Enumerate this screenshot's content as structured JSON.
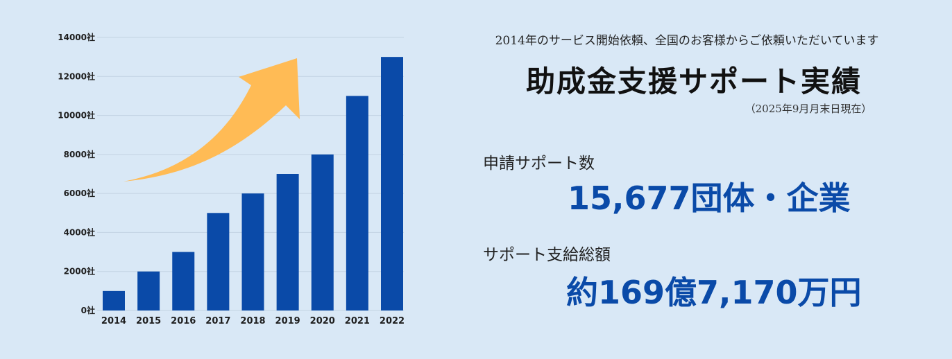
{
  "chart_data": {
    "type": "bar",
    "categories": [
      "2014",
      "2015",
      "2016",
      "2017",
      "2018",
      "2019",
      "2020",
      "2021",
      "2022"
    ],
    "values": [
      1000,
      2000,
      3000,
      5000,
      6000,
      7000,
      8000,
      11000,
      13000
    ],
    "ylim": [
      0,
      14000
    ],
    "y_ticks": [
      "0社",
      "2000社",
      "4000社",
      "6000社",
      "8000社",
      "10000社",
      "12000社",
      "14000社"
    ],
    "y_tick_values": [
      0,
      2000,
      4000,
      6000,
      8000,
      10000,
      12000,
      14000
    ],
    "grid": true,
    "bar_color": "#0a4aa8",
    "arrow_color": "#ffbb55"
  },
  "info": {
    "intro": "2014年のサービス開始依頼、全国のお客様からご依頼いただいています",
    "headline": "助成金支援サポート実績",
    "as_of": "（2025年9月月末日現在）",
    "stat1_label": "申請サポート数",
    "stat1_value": "15,677団体・企業",
    "stat2_label": "サポート支給総額",
    "stat2_value": "約169億7,170万円"
  },
  "colors": {
    "background": "#d9e8f6",
    "accent": "#0a4aa8"
  }
}
